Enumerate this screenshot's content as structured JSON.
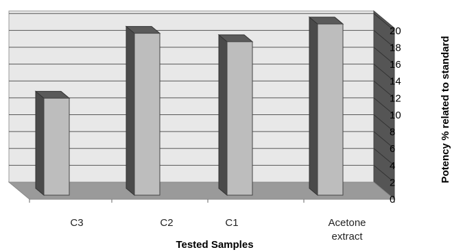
{
  "chart_data": {
    "type": "bar",
    "categories": [
      "C3",
      "C2",
      "C1",
      "Acetone extract"
    ],
    "values": [
      11.5,
      19.2,
      18.2,
      20.3
    ],
    "xlabel": "Tested Samples",
    "ylabel": "Potency % related to standard",
    "ylim": [
      0,
      20
    ],
    "yticks": [
      "0",
      "2",
      "4",
      "6",
      "8",
      "10",
      "12",
      "14",
      "16",
      "18",
      "20"
    ],
    "grid": true,
    "style": "3d",
    "colors": {
      "bar_front": "#bdbdbd",
      "bar_side": "#4a4a4a",
      "bar_top": "#5a5a5a",
      "back_wall": "#e8e8e8",
      "side_wall": "#555555",
      "floor": "#9a9a9a",
      "gridline": "#555555"
    }
  }
}
